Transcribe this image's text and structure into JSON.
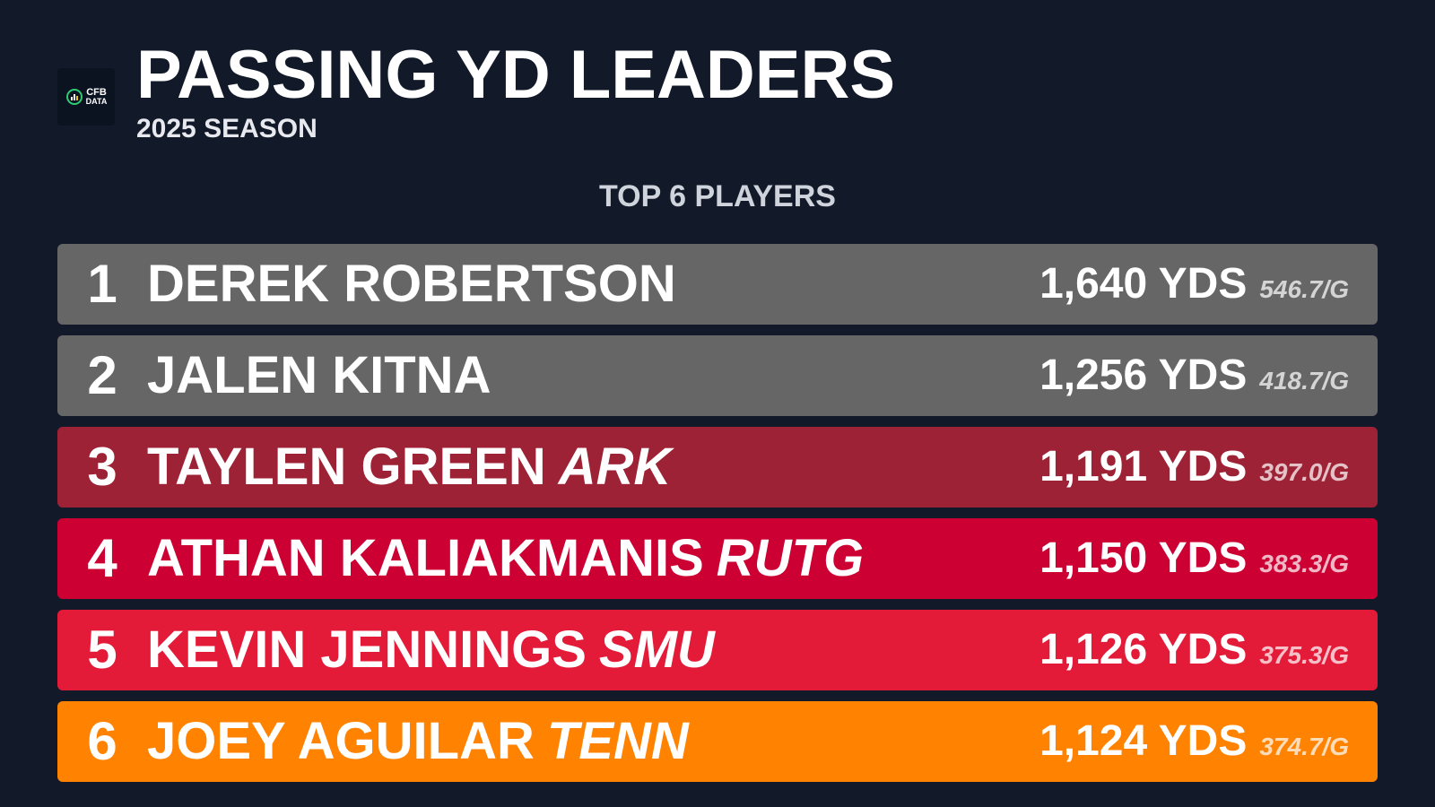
{
  "header": {
    "logo_line1": "CFB",
    "logo_line2": "DATA",
    "title": "PASSING YD LEADERS",
    "subtitle": "2025 SEASON"
  },
  "section": {
    "heading": "TOP 6 PLAYERS"
  },
  "rows": [
    {
      "rank": "1",
      "player": "DEREK ROBERTSON",
      "team": "",
      "yards": "1,640 YDS",
      "per_game": "546.7/G",
      "color": "#666666"
    },
    {
      "rank": "2",
      "player": "JALEN KITNA",
      "team": "",
      "yards": "1,256 YDS",
      "per_game": "418.7/G",
      "color": "#666666"
    },
    {
      "rank": "3",
      "player": "TAYLEN GREEN",
      "team": "ARK",
      "yards": "1,191 YDS",
      "per_game": "397.0/G",
      "color": "#9d2235"
    },
    {
      "rank": "4",
      "player": "ATHAN KALIAKMANIS",
      "team": "RUTG",
      "yards": "1,150 YDS",
      "per_game": "383.3/G",
      "color": "#cc0033"
    },
    {
      "rank": "5",
      "player": "KEVIN JENNINGS",
      "team": "SMU",
      "yards": "1,126 YDS",
      "per_game": "375.3/G",
      "color": "#e31a38"
    },
    {
      "rank": "6",
      "player": "JOEY AGUILAR",
      "team": "TENN",
      "yards": "1,124 YDS",
      "per_game": "374.7/G",
      "color": "#ff8200"
    }
  ]
}
